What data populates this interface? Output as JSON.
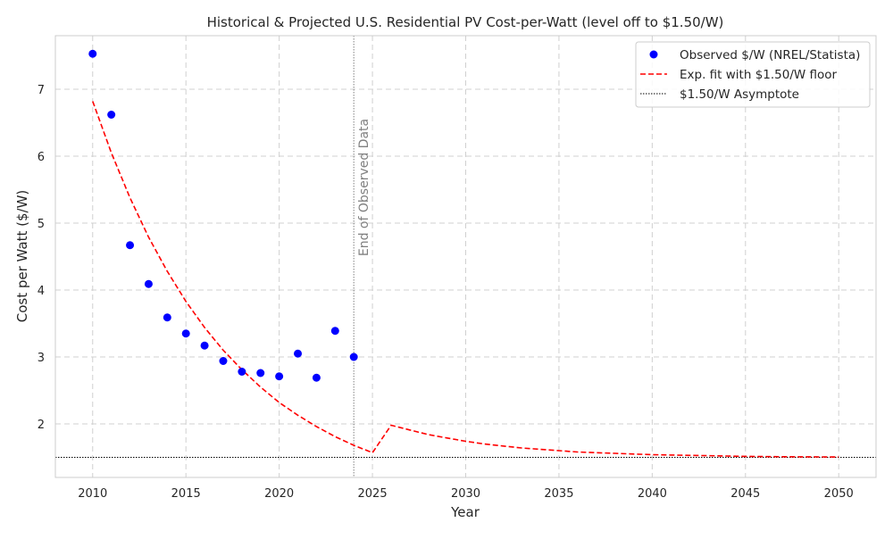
{
  "chart_data": {
    "type": "scatter",
    "title": "Historical & Projected U.S. Residential PV Cost-per-Watt (level off to $1.50/W)",
    "xlabel": "Year",
    "ylabel": "Cost per Watt ($/W)",
    "xlim": [
      2008,
      2052
    ],
    "ylim": [
      1.2,
      7.8
    ],
    "xticks": [
      2010,
      2015,
      2020,
      2025,
      2030,
      2035,
      2040,
      2045,
      2050
    ],
    "yticks": [
      2,
      3,
      4,
      5,
      6,
      7
    ],
    "grid": true,
    "legend_position": "top-right",
    "series": [
      {
        "name": "Observed $/W (NREL/Statista)",
        "kind": "scatter",
        "color": "#0000ff",
        "x": [
          2010,
          2011,
          2012,
          2013,
          2014,
          2015,
          2016,
          2017,
          2018,
          2019,
          2020,
          2021,
          2022,
          2023,
          2024
        ],
        "y": [
          7.53,
          6.62,
          4.67,
          4.09,
          3.59,
          3.35,
          3.17,
          2.94,
          2.78,
          2.76,
          2.71,
          3.05,
          2.69,
          3.39,
          3.0
        ]
      },
      {
        "name": "Exp. fit with $1.50/W floor",
        "kind": "line",
        "style": "dashed",
        "color": "#ff0000",
        "x": [
          2010,
          2011,
          2012,
          2013,
          2014,
          2015,
          2016,
          2017,
          2018,
          2019,
          2020,
          2021,
          2022,
          2023,
          2024,
          2025,
          2026,
          2027,
          2028,
          2029,
          2030,
          2031,
          2032,
          2033,
          2034,
          2035,
          2036,
          2037,
          2038,
          2039,
          2040,
          2041,
          2042,
          2043,
          2044,
          2045,
          2046,
          2047,
          2048,
          2049,
          2050
        ],
        "y": [
          6.82,
          6.05,
          5.38,
          4.79,
          4.28,
          3.83,
          3.44,
          3.1,
          2.81,
          2.55,
          2.32,
          2.13,
          1.96,
          1.81,
          1.68,
          1.57,
          1.98,
          1.91,
          1.84,
          1.79,
          1.74,
          1.7,
          1.67,
          1.64,
          1.62,
          1.6,
          1.58,
          1.57,
          1.56,
          1.55,
          1.54,
          1.535,
          1.53,
          1.525,
          1.52,
          1.515,
          1.512,
          1.51,
          1.508,
          1.506,
          1.505
        ]
      },
      {
        "name": "$1.50/W Asymptote",
        "kind": "hline",
        "style": "dotted",
        "color": "#000000",
        "y": 1.5
      }
    ],
    "annotations": [
      {
        "text": "End of Observed Data",
        "x": 2024,
        "color": "#808080",
        "kind": "vline"
      }
    ]
  }
}
